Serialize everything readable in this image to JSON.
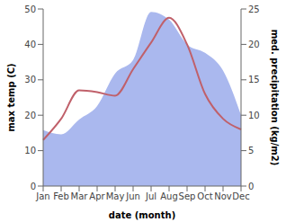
{
  "chart_data": {
    "type": "combo",
    "x_label": "date (month)",
    "y_label": "max temp (C)",
    "y2_label": "med. precipitation (kg/m2)",
    "categories": [
      "Jan",
      "Feb",
      "Mar",
      "Apr",
      "May",
      "Jun",
      "Jul",
      "Aug",
      "Sep",
      "Oct",
      "Nov",
      "Dec"
    ],
    "ylim": [
      0,
      50
    ],
    "yticks": [
      0,
      10,
      20,
      30,
      40,
      50
    ],
    "y2lim": [
      0,
      25
    ],
    "y2ticks": [
      0,
      5,
      10,
      15,
      20,
      25
    ],
    "grid": false,
    "series": [
      {
        "name": "med. precipitation",
        "type": "area",
        "axis": "y2",
        "color": "#aab8ee",
        "values": [
          7.9,
          7.3,
          9.4,
          11.3,
          15.9,
          17.8,
          24.6,
          23.5,
          20,
          18.8,
          16.3,
          10
        ]
      },
      {
        "name": "max temp",
        "type": "line",
        "axis": "y",
        "color": "#c0606a",
        "values": [
          13,
          19,
          27,
          26.5,
          25.5,
          33,
          40.5,
          47.5,
          40,
          26,
          19,
          16
        ]
      }
    ]
  }
}
